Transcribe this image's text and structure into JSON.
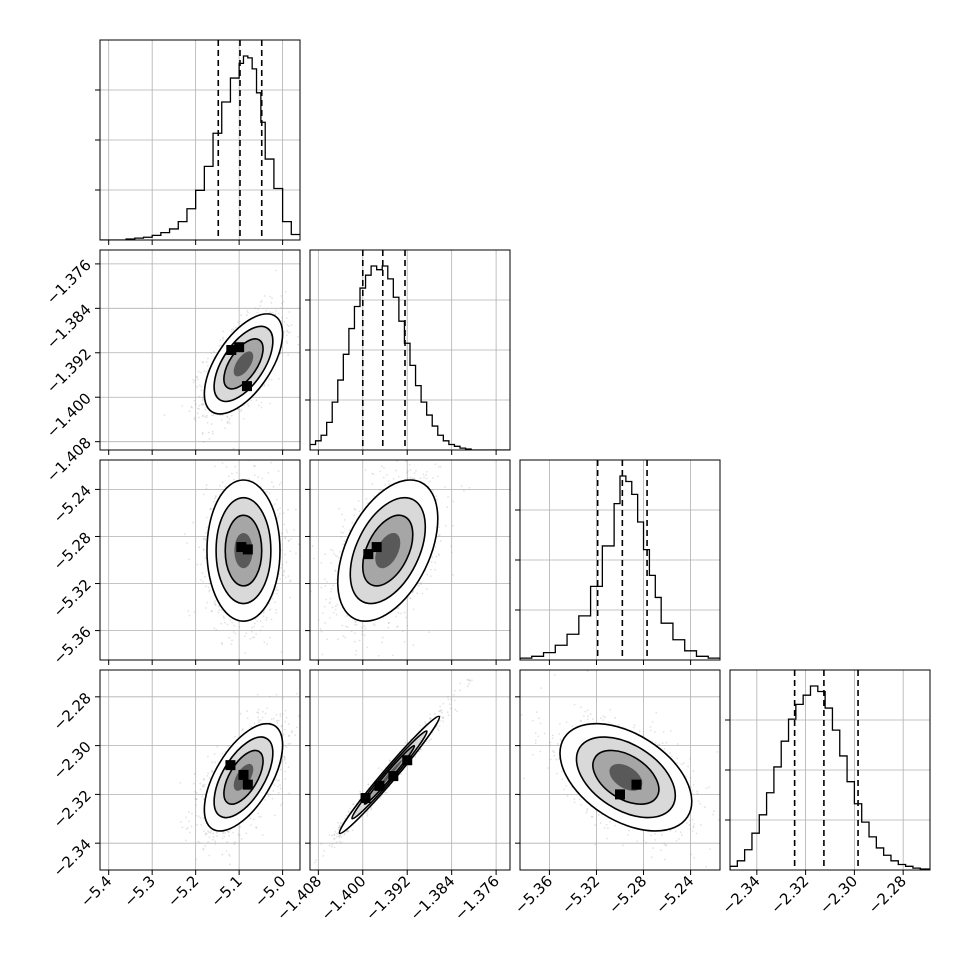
{
  "chart_data": {
    "type": "corner",
    "grid": true,
    "parameters": [
      {
        "range": [
          -5.42,
          -4.96
        ],
        "ticks": [
          "−5.4",
          "−5.3",
          "−5.2",
          "−5.1",
          "−5.0"
        ],
        "tick_values": [
          -5.4,
          -5.3,
          -5.2,
          -5.1,
          -5.0
        ],
        "quantiles": [
          -5.148,
          -5.098,
          -5.048
        ],
        "hist_bins": [
          -5.42,
          -5.4,
          -5.38,
          -5.36,
          -5.34,
          -5.32,
          -5.3,
          -5.28,
          -5.26,
          -5.24,
          -5.22,
          -5.2,
          -5.18,
          -5.16,
          -5.14,
          -5.12,
          -5.1,
          -5.09,
          -5.08,
          -5.07,
          -5.06,
          -5.05,
          -5.04,
          -5.02,
          -5.0,
          -4.98,
          -4.96
        ],
        "hist_counts": [
          0,
          0,
          0,
          0.5,
          1,
          1.5,
          2.5,
          4,
          6,
          10,
          17,
          27,
          40,
          58,
          75,
          88,
          96,
          100,
          99,
          93,
          80,
          64,
          44,
          28,
          10,
          3
        ]
      },
      {
        "range": [
          -1.4095,
          -1.3735
        ],
        "ticks": [
          "−1.408",
          "−1.400",
          "−1.392",
          "−1.384",
          "−1.376"
        ],
        "tick_values": [
          -1.408,
          -1.4,
          -1.392,
          -1.384,
          -1.376
        ],
        "quantiles": [
          -1.4,
          -1.3964,
          -1.3924
        ],
        "hist_bins": [
          -1.4095,
          -1.4085,
          -1.4075,
          -1.4065,
          -1.4055,
          -1.4045,
          -1.4035,
          -1.4025,
          -1.4015,
          -1.4005,
          -1.3995,
          -1.3985,
          -1.3975,
          -1.3965,
          -1.3955,
          -1.3945,
          -1.3935,
          -1.3925,
          -1.3915,
          -1.3905,
          -1.3895,
          -1.3885,
          -1.3875,
          -1.3865,
          -1.3855,
          -1.3845,
          -1.3835,
          -1.3825,
          -1.3815,
          -1.3805,
          -1.3795,
          -1.3785,
          -1.3775,
          -1.3765,
          -1.3755,
          -1.3745,
          -1.3735
        ],
        "hist_counts": [
          3,
          5,
          8,
          15,
          26,
          38,
          52,
          66,
          78,
          88,
          95,
          100,
          98,
          100,
          93,
          83,
          70,
          58,
          46,
          35,
          26,
          19,
          13,
          8,
          5,
          3,
          2,
          1,
          0.5,
          0,
          0,
          0,
          0,
          0,
          0,
          0
        ]
      },
      {
        "range": [
          -5.385,
          -5.215
        ],
        "ticks": [
          "−5.36",
          "−5.32",
          "−5.28",
          "−5.24"
        ],
        "tick_values": [
          -5.36,
          -5.32,
          -5.28,
          -5.24
        ],
        "quantiles": [
          -5.319,
          -5.298,
          -5.277
        ],
        "hist_bins": [
          -5.385,
          -5.375,
          -5.365,
          -5.355,
          -5.345,
          -5.335,
          -5.325,
          -5.315,
          -5.305,
          -5.3,
          -5.295,
          -5.29,
          -5.285,
          -5.28,
          -5.275,
          -5.27,
          -5.265,
          -5.255,
          -5.245,
          -5.235,
          -5.225,
          -5.215
        ],
        "hist_counts": [
          1,
          2,
          4,
          8,
          14,
          24,
          40,
          62,
          85,
          100,
          97,
          90,
          75,
          60,
          46,
          34,
          20,
          11,
          5,
          2,
          1
        ]
      },
      {
        "range": [
          -2.351,
          -2.269
        ],
        "ticks": [
          "−2.34",
          "−2.32",
          "−2.30",
          "−2.28"
        ],
        "tick_values": [
          -2.34,
          -2.32,
          -2.3,
          -2.28
        ],
        "quantiles": [
          -2.3245,
          -2.3125,
          -2.2985
        ],
        "hist_bins": [
          -2.351,
          -2.348,
          -2.345,
          -2.342,
          -2.339,
          -2.336,
          -2.333,
          -2.33,
          -2.327,
          -2.324,
          -2.321,
          -2.318,
          -2.315,
          -2.312,
          -2.309,
          -2.306,
          -2.303,
          -2.3,
          -2.297,
          -2.294,
          -2.291,
          -2.288,
          -2.285,
          -2.282,
          -2.279,
          -2.276,
          -2.273,
          -2.269
        ],
        "hist_counts": [
          2,
          5,
          11,
          20,
          30,
          42,
          56,
          70,
          82,
          90,
          95,
          100,
          97,
          88,
          76,
          62,
          48,
          36,
          26,
          18,
          12,
          8,
          5,
          3,
          2,
          1,
          0.5
        ]
      }
    ],
    "pairs": [
      {
        "x": 0,
        "y": 1,
        "center": [
          -5.09,
          -1.394
        ],
        "sigma": [
          0.045,
          0.0045
        ],
        "rho": 0.6,
        "dense": [
          [
            -5.118,
            -1.3915
          ],
          [
            -5.1,
            -1.391
          ],
          [
            -5.082,
            -1.398
          ]
        ]
      },
      {
        "x": 0,
        "y": 2,
        "center": [
          -5.09,
          -5.292
        ],
        "sigma": [
          0.042,
          0.03
        ],
        "rho": 0.0,
        "dense": [
          [
            -5.095,
            -5.289
          ],
          [
            -5.08,
            -5.291
          ]
        ]
      },
      {
        "x": 1,
        "y": 2,
        "center": [
          -1.3955,
          -5.292
        ],
        "sigma": [
          0.0045,
          0.03
        ],
        "rho": 0.45,
        "dense": [
          [
            -1.399,
            -5.295
          ],
          [
            -1.3975,
            -5.289
          ]
        ]
      },
      {
        "x": 0,
        "y": 3,
        "center": [
          -5.09,
          -2.313
        ],
        "sigma": [
          0.045,
          0.011
        ],
        "rho": 0.6,
        "dense": [
          [
            -5.12,
            -2.308
          ],
          [
            -5.09,
            -2.312
          ],
          [
            -5.08,
            -2.316
          ]
        ]
      },
      {
        "x": 1,
        "y": 3,
        "center": [
          -1.3952,
          -2.312
        ],
        "sigma": [
          0.0045,
          0.012
        ],
        "rho": 0.985,
        "dense": [
          [
            -1.3995,
            -2.3215
          ],
          [
            -1.397,
            -2.3165
          ],
          [
            -1.3945,
            -2.3125
          ],
          [
            -1.392,
            -2.306
          ]
        ]
      },
      {
        "x": 2,
        "y": 3,
        "center": [
          -5.295,
          -2.313
        ],
        "sigma": [
          0.028,
          0.011
        ],
        "rho": -0.45,
        "dense": [
          [
            -5.3,
            -2.32
          ],
          [
            -5.286,
            -2.316
          ]
        ]
      }
    ],
    "colors": {
      "line": "#000000",
      "grid": "#b0b0b0",
      "scatter": "#9a9a9a"
    }
  }
}
